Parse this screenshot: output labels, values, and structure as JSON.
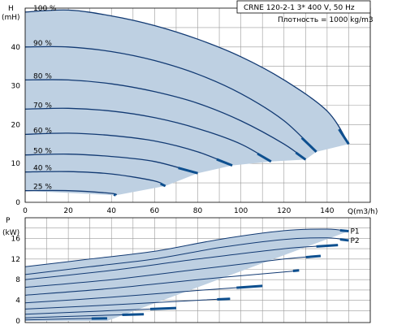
{
  "chart_data": [
    {
      "type": "line",
      "title": "CRNE 120-2-1   3* 400 V, 50 Hz",
      "subtitle": "Плотность = 1000 kg/m3",
      "xlabel": "Q(m3/h)",
      "ylabel": "H",
      "ylabel_unit": "(mH)",
      "xlim": [
        0,
        160
      ],
      "ylim": [
        0,
        50
      ],
      "xticks": [
        0,
        20,
        40,
        60,
        80,
        100,
        120,
        140
      ],
      "yticks": [
        0,
        10,
        20,
        30,
        40
      ],
      "grid": true,
      "series": [
        {
          "name": "100 %",
          "x": [
            0,
            20,
            40,
            60,
            80,
            100,
            120,
            140,
            150
          ],
          "y": [
            49,
            49.5,
            48,
            45.5,
            42,
            37.5,
            31.5,
            23.5,
            15
          ]
        },
        {
          "name": "90 %",
          "x": [
            0,
            20,
            40,
            60,
            80,
            100,
            120,
            135
          ],
          "y": [
            40,
            40,
            38.8,
            36.5,
            33,
            28,
            21,
            13
          ]
        },
        {
          "name": "80 %",
          "x": [
            0,
            20,
            40,
            60,
            80,
            100,
            120,
            130
          ],
          "y": [
            31.5,
            31.5,
            30.5,
            28.5,
            25.5,
            21,
            15,
            11
          ]
        },
        {
          "name": "70 %",
          "x": [
            0,
            20,
            40,
            60,
            80,
            100,
            114
          ],
          "y": [
            24,
            24.2,
            23.5,
            21.8,
            19,
            15,
            10.5
          ]
        },
        {
          "name": "60 %",
          "x": [
            0,
            20,
            40,
            60,
            80,
            96
          ],
          "y": [
            17.5,
            17.8,
            17.2,
            15.8,
            13,
            9.5
          ]
        },
        {
          "name": "50 %",
          "x": [
            0,
            20,
            40,
            60,
            80
          ],
          "y": [
            12.2,
            12.4,
            11.8,
            10.5,
            7.5
          ]
        },
        {
          "name": "40 %",
          "x": [
            0,
            20,
            40,
            60,
            65
          ],
          "y": [
            7.8,
            7.9,
            7.3,
            5.5,
            4.2
          ]
        },
        {
          "name": "25 %",
          "x": [
            0,
            20,
            40,
            42
          ],
          "y": [
            3,
            3,
            2.3,
            1.8
          ]
        }
      ]
    },
    {
      "type": "line",
      "xlabel": "",
      "ylabel": "P",
      "ylabel_unit": "(kW)",
      "xlim": [
        0,
        160
      ],
      "ylim": [
        0,
        20
      ],
      "yticks": [
        0,
        4,
        8,
        12,
        16
      ],
      "grid": true,
      "series": [
        {
          "name": "P1",
          "x": [
            0,
            30,
            60,
            90,
            120,
            140,
            150
          ],
          "y": [
            10.5,
            12,
            13.5,
            15.8,
            17.5,
            17.8,
            17.4
          ]
        },
        {
          "name": "P2",
          "x": [
            0,
            30,
            60,
            90,
            120,
            140,
            150
          ],
          "y": [
            9,
            10.5,
            12,
            14.2,
            15.8,
            16.1,
            15.6
          ]
        },
        {
          "name": "",
          "x": [
            0,
            40,
            80,
            120,
            145
          ],
          "y": [
            8,
            9.8,
            12,
            14,
            14.7
          ]
        },
        {
          "name": "",
          "x": [
            0,
            40,
            80,
            120,
            137
          ],
          "y": [
            6.5,
            8,
            10,
            12,
            12.6
          ]
        },
        {
          "name": "",
          "x": [
            0,
            40,
            80,
            120,
            127
          ],
          "y": [
            5,
            6.3,
            8,
            9.5,
            9.8
          ]
        },
        {
          "name": "",
          "x": [
            0,
            40,
            80,
            110
          ],
          "y": [
            3.5,
            4.6,
            5.9,
            6.8
          ]
        },
        {
          "name": "",
          "x": [
            0,
            40,
            80,
            95
          ],
          "y": [
            2.3,
            3.1,
            4,
            4.3
          ]
        },
        {
          "name": "",
          "x": [
            0,
            40,
            70
          ],
          "y": [
            1.3,
            2,
            2.5
          ]
        },
        {
          "name": "",
          "x": [
            0,
            30,
            55
          ],
          "y": [
            0.6,
            1,
            1.3
          ]
        },
        {
          "name": "",
          "x": [
            0,
            20,
            38
          ],
          "y": [
            0.2,
            0.4,
            0.5
          ]
        }
      ]
    }
  ]
}
